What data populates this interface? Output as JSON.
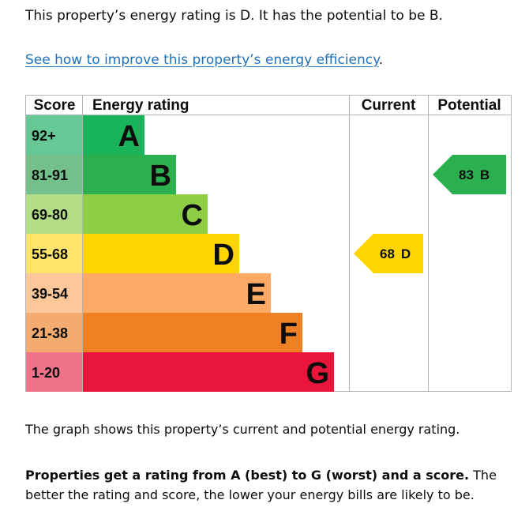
{
  "intro_text": "This property’s energy rating is D. It has the potential to be B.",
  "improve_link": "See how to improve this property’s energy efficiency",
  "improve_link_suffix": ".",
  "caption": "The graph shows this property’s current and potential energy rating.",
  "explain_bold": "Properties get a rating from A (best) to G (worst) and a score.",
  "explain_rest": " The better the rating and score, the lower your energy bills are likely to be.",
  "chart_data": {
    "type": "bar",
    "headers": {
      "score": "Score",
      "rating": "Energy rating",
      "current": "Current",
      "potential": "Potential"
    },
    "bands": [
      {
        "range": "92+",
        "letter": "A",
        "bar_color": "#19b459",
        "score_bg": "#66c895"
      },
      {
        "range": "81-91",
        "letter": "B",
        "bar_color": "#2cb04f",
        "score_bg": "#73c08a"
      },
      {
        "range": "69-80",
        "letter": "C",
        "bar_color": "#8dce46",
        "score_bg": "#b4dd87"
      },
      {
        "range": "55-68",
        "letter": "D",
        "bar_color": "#ffd500",
        "score_bg": "#ffe36a"
      },
      {
        "range": "39-54",
        "letter": "E",
        "bar_color": "#fcaa65",
        "score_bg": "#fdc79a"
      },
      {
        "range": "21-38",
        "letter": "F",
        "bar_color": "#ef8023",
        "score_bg": "#f4ab6f"
      },
      {
        "range": "1-20",
        "letter": "G",
        "bar_color": "#e9153b",
        "score_bg": "#f1738a"
      }
    ],
    "current": {
      "score": 68,
      "letter": "D",
      "color": "#ffd500",
      "label": "68 D"
    },
    "potential": {
      "score": 83,
      "letter": "B",
      "color": "#2cb04f",
      "label": "83 B"
    }
  }
}
